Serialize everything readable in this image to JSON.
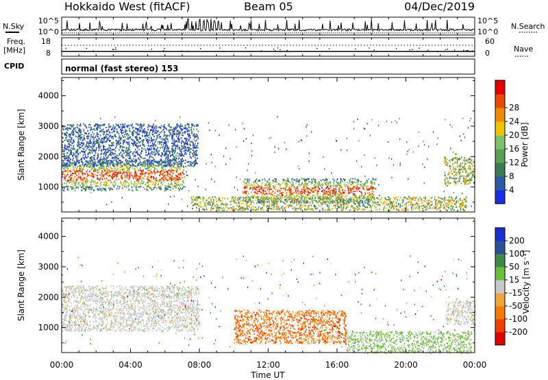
{
  "header": {
    "radar": "Hokkaido West (fitACF)",
    "beam": "Beam 05",
    "date": "04/Dec/2019"
  },
  "summary": {
    "nsky_label": "N.Sky",
    "nsearch_label": "N.Search",
    "freq_label": "Freq.",
    "freq_unit": "[MHz]",
    "nave_label": "Nave",
    "cpid_label": "CPID",
    "cpid_value": "normal (fast stereo) 153",
    "noise_ticks": [
      "10^5",
      "10^0"
    ],
    "freq_ticks": [
      "18",
      "8"
    ],
    "nave_ticks": [
      "60",
      "0"
    ]
  },
  "colors": {
    "power": [
      "#1a2fe0",
      "#2b5aa8",
      "#3b7a55",
      "#5a9e52",
      "#7fc06a",
      "#f2c200",
      "#f08a00",
      "#e84a00",
      "#e00000"
    ],
    "velocity": [
      "#e00000",
      "#f04000",
      "#f57a00",
      "#f2a33c",
      "#c8c8c8",
      "#6abf3a",
      "#3e8a4a",
      "#2b4f9a",
      "#1a2fd0"
    ]
  },
  "chart_data": [
    {
      "type": "heatmap",
      "panel": "power",
      "xlabel": "Time UT",
      "ylabel": "Slant Range [km]",
      "x_ticks": [
        "00:00",
        "04:00",
        "08:00",
        "12:00",
        "16:00",
        "20:00",
        "00:00"
      ],
      "xlim_hours": [
        0,
        24
      ],
      "y_ticks": [
        1000,
        2000,
        3000,
        4000
      ],
      "ylim": [
        180,
        4600
      ],
      "colorbar_label": "Power [dB]",
      "colorbar_ticks": [
        4,
        8,
        12,
        16,
        20,
        24,
        28
      ],
      "regions": [
        {
          "t_start": 0.0,
          "t_end": 7.1,
          "range_min": 900,
          "range_max": 1900,
          "level": "strong"
        },
        {
          "t_start": 0.0,
          "t_end": 7.9,
          "range_min": 1700,
          "range_max": 3100,
          "level": "weak"
        },
        {
          "t_start": 10.5,
          "t_end": 18.2,
          "range_min": 500,
          "range_max": 1300,
          "level": "strong"
        },
        {
          "t_start": 7.5,
          "t_end": 23.5,
          "range_min": 250,
          "range_max": 700,
          "level": "medium"
        },
        {
          "t_start": 22.2,
          "t_end": 24.0,
          "range_min": 1100,
          "range_max": 2000,
          "level": "medium"
        }
      ]
    },
    {
      "type": "heatmap",
      "panel": "velocity",
      "xlabel": "Time UT",
      "ylabel": "Slant Range [km]",
      "x_ticks": [
        "00:00",
        "04:00",
        "08:00",
        "12:00",
        "16:00",
        "20:00",
        "00:00"
      ],
      "xlim_hours": [
        0,
        24
      ],
      "y_ticks": [
        1000,
        2000,
        3000,
        4000
      ],
      "ylim": [
        180,
        4600
      ],
      "colorbar_label": "Velocity [m s⁻¹]",
      "colorbar_ticks": [
        200,
        100,
        50,
        15,
        -15,
        -50,
        -100,
        -200
      ],
      "regions": [
        {
          "t_start": 0.0,
          "t_end": 8.0,
          "range_min": 900,
          "range_max": 2400,
          "level": "near-zero"
        },
        {
          "t_start": 10.0,
          "t_end": 16.5,
          "range_min": 500,
          "range_max": 1600,
          "level": "negative"
        },
        {
          "t_start": 16.5,
          "t_end": 23.8,
          "range_min": 180,
          "range_max": 900,
          "level": "weak-positive"
        },
        {
          "t_start": 22.3,
          "t_end": 24.0,
          "range_min": 1100,
          "range_max": 1900,
          "level": "near-zero"
        }
      ]
    }
  ]
}
